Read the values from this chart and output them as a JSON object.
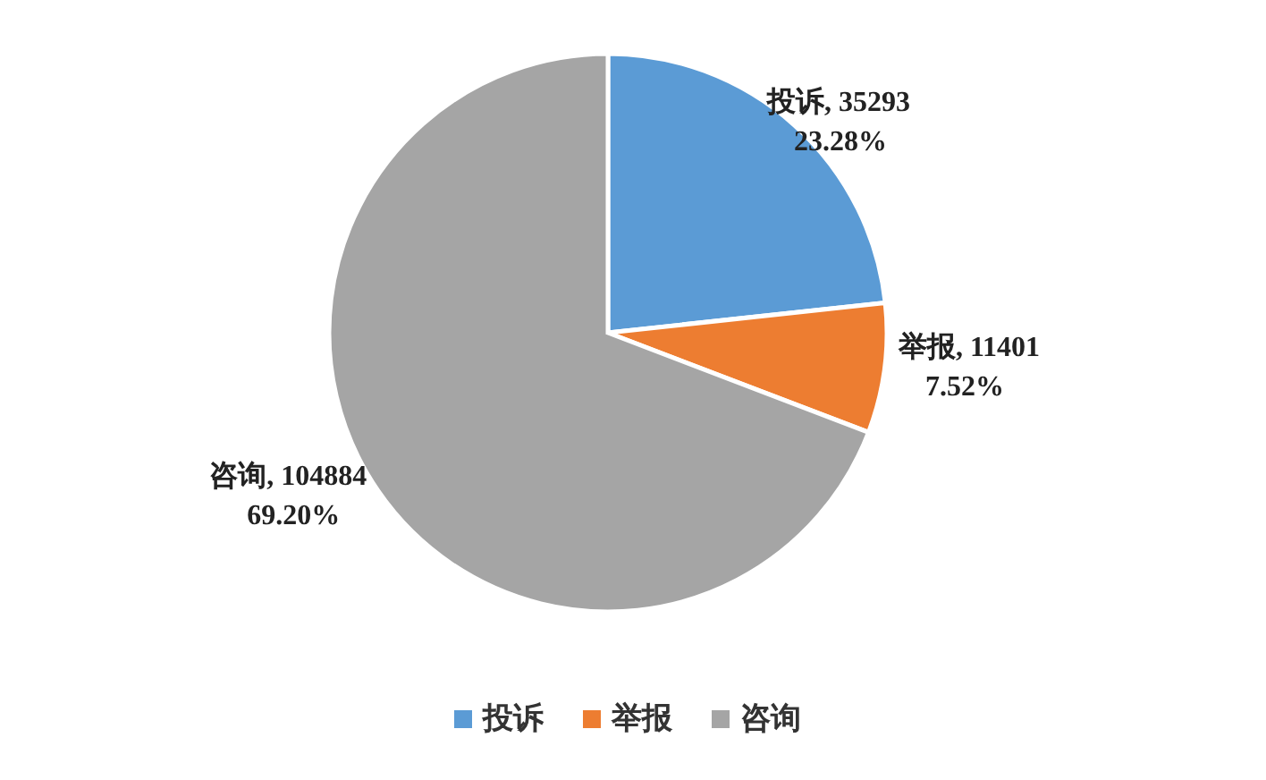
{
  "chart_data": {
    "type": "pie",
    "categories": [
      "投诉",
      "举报",
      "咨询"
    ],
    "values": [
      35293,
      11401,
      104884
    ],
    "colors": [
      "#5b9bd5",
      "#ed7d31",
      "#a5a5a5"
    ],
    "value_labels": [
      "投诉, 35293\n23.28%",
      "举报, 11401\n7.52%",
      "咨询, 104884\n69.20%"
    ],
    "legend": "bottom"
  }
}
